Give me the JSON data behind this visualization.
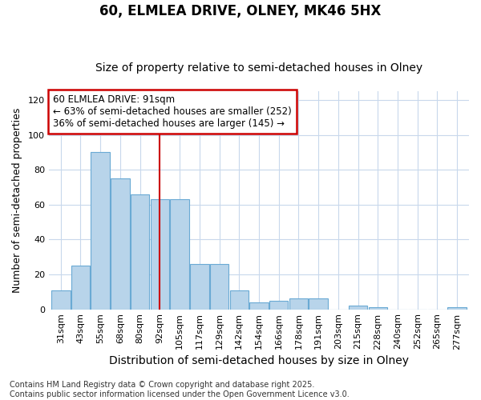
{
  "title1": "60, ELMLEA DRIVE, OLNEY, MK46 5HX",
  "title2": "Size of property relative to semi-detached houses in Olney",
  "xlabel": "Distribution of semi-detached houses by size in Olney",
  "ylabel": "Number of semi-detached properties",
  "categories": [
    "31sqm",
    "43sqm",
    "55sqm",
    "68sqm",
    "80sqm",
    "92sqm",
    "105sqm",
    "117sqm",
    "129sqm",
    "142sqm",
    "154sqm",
    "166sqm",
    "178sqm",
    "191sqm",
    "203sqm",
    "215sqm",
    "228sqm",
    "240sqm",
    "252sqm",
    "265sqm",
    "277sqm"
  ],
  "values": [
    11,
    25,
    90,
    75,
    66,
    63,
    63,
    26,
    26,
    11,
    4,
    5,
    6,
    6,
    0,
    2,
    1,
    0,
    0,
    0,
    1
  ],
  "bar_color": "#b8d4ea",
  "bar_edge_color": "#6aaad4",
  "grid_color": "#c8d8ec",
  "background_color": "#ffffff",
  "plot_background_color": "#ffffff",
  "vline_x_index": 5,
  "vline_color": "#cc0000",
  "annotation_text": "60 ELMLEA DRIVE: 91sqm\n← 63% of semi-detached houses are smaller (252)\n36% of semi-detached houses are larger (145) →",
  "annotation_box_color": "white",
  "annotation_box_edge_color": "#cc0000",
  "ylim": [
    0,
    125
  ],
  "yticks": [
    0,
    20,
    40,
    60,
    80,
    100,
    120
  ],
  "footer_text": "Contains HM Land Registry data © Crown copyright and database right 2025.\nContains public sector information licensed under the Open Government Licence v3.0.",
  "title1_fontsize": 12,
  "title2_fontsize": 10,
  "xlabel_fontsize": 10,
  "ylabel_fontsize": 9,
  "tick_fontsize": 8,
  "annotation_fontsize": 8.5,
  "footer_fontsize": 7
}
